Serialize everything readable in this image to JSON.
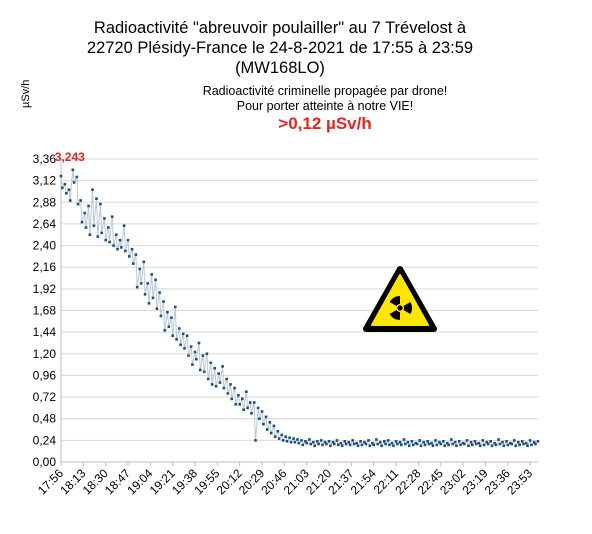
{
  "header": {
    "title_line1": "Radioactivité \"abreuvoir poulailler\" au 7 Trévelost à",
    "title_line2": "22720 Plésidy-France le 24-8-2021 de 17:55 à 23:59",
    "title_line3": "(MW168LO)",
    "subtitle_line1": "Radioactivité criminelle propagée par drone!",
    "subtitle_line2": "Pour porter atteinte à notre VIE!",
    "threshold": ">0,12 µSv/h",
    "hazard_icon": "radiation-warning-icon"
  },
  "colors": {
    "line": "#b7c9d9",
    "marker": "#1f4e79",
    "annotation": "#e8241c",
    "grid": "#d9d9d9",
    "hazard_yellow": "#ffe600"
  },
  "chart_data": {
    "type": "line",
    "ylabel": "µSv/h",
    "ylim": [
      0,
      3.36
    ],
    "yticks": [
      "0,00",
      "0,24",
      "0,48",
      "0,72",
      "0,96",
      "1,20",
      "1,44",
      "1,68",
      "1,92",
      "2,16",
      "2,40",
      "2,64",
      "2,88",
      "3,12",
      "3,36"
    ],
    "xticks": [
      "17:56",
      "18:13",
      "18:30",
      "18:47",
      "19:04",
      "19:21",
      "19:38",
      "19:55",
      "20:12",
      "20:29",
      "20:46",
      "21:03",
      "21:20",
      "21:37",
      "21:54",
      "22:11",
      "22:28",
      "22:45",
      "23:02",
      "23:19",
      "23:36",
      "23:53"
    ],
    "x_range": [
      "17:56",
      "23:59"
    ],
    "grid": "horizontal",
    "max_annotation": "3,243",
    "series": [
      {
        "points": [
          [
            "17:56",
            3.17
          ],
          [
            "17:57",
            3.04
          ],
          [
            "17:59",
            3.08
          ],
          [
            "18:00",
            2.98
          ],
          [
            "18:02",
            3.02
          ],
          [
            "18:03",
            2.9
          ],
          [
            "18:05",
            3.24
          ],
          [
            "18:06",
            3.1
          ],
          [
            "18:08",
            3.16
          ],
          [
            "18:09",
            2.86
          ],
          [
            "18:11",
            2.9
          ],
          [
            "18:12",
            2.66
          ],
          [
            "18:14",
            2.76
          ],
          [
            "18:15",
            2.6
          ],
          [
            "18:17",
            2.84
          ],
          [
            "18:18",
            2.52
          ],
          [
            "18:20",
            3.02
          ],
          [
            "18:21",
            2.62
          ],
          [
            "18:23",
            2.92
          ],
          [
            "18:24",
            2.5
          ],
          [
            "18:26",
            2.86
          ],
          [
            "18:27",
            2.54
          ],
          [
            "18:29",
            2.7
          ],
          [
            "18:30",
            2.46
          ],
          [
            "18:32",
            2.6
          ],
          [
            "18:33",
            2.44
          ],
          [
            "18:35",
            2.72
          ],
          [
            "18:36",
            2.4
          ],
          [
            "18:38",
            2.52
          ],
          [
            "18:39",
            2.36
          ],
          [
            "18:41",
            2.46
          ],
          [
            "18:42",
            2.38
          ],
          [
            "18:44",
            2.62
          ],
          [
            "18:45",
            2.34
          ],
          [
            "18:47",
            2.46
          ],
          [
            "18:48",
            2.28
          ],
          [
            "18:50",
            2.36
          ],
          [
            "18:51",
            2.2
          ],
          [
            "18:53",
            2.3
          ],
          [
            "18:54",
            1.94
          ],
          [
            "18:56",
            2.14
          ],
          [
            "18:57",
            1.98
          ],
          [
            "18:59",
            2.22
          ],
          [
            "19:00",
            1.86
          ],
          [
            "19:02",
            1.98
          ],
          [
            "19:03",
            1.76
          ],
          [
            "19:05",
            2.08
          ],
          [
            "19:06",
            1.82
          ],
          [
            "19:08",
            2.02
          ],
          [
            "19:09",
            1.7
          ],
          [
            "19:11",
            1.88
          ],
          [
            "19:12",
            1.62
          ],
          [
            "19:14",
            1.78
          ],
          [
            "19:15",
            1.46
          ],
          [
            "19:17",
            1.66
          ],
          [
            "19:18",
            1.5
          ],
          [
            "19:20",
            1.6
          ],
          [
            "19:21",
            1.4
          ],
          [
            "19:23",
            1.72
          ],
          [
            "19:24",
            1.36
          ],
          [
            "19:26",
            1.48
          ],
          [
            "19:27",
            1.3
          ],
          [
            "19:29",
            1.42
          ],
          [
            "19:30",
            1.26
          ],
          [
            "19:32",
            1.4
          ],
          [
            "19:33",
            1.18
          ],
          [
            "19:35",
            1.28
          ],
          [
            "19:36",
            1.08
          ],
          [
            "19:38",
            1.22
          ],
          [
            "19:39",
            1.14
          ],
          [
            "19:41",
            1.32
          ],
          [
            "19:42",
            1.02
          ],
          [
            "19:44",
            1.18
          ],
          [
            "19:45",
            1.0
          ],
          [
            "19:47",
            1.2
          ],
          [
            "19:48",
            0.92
          ],
          [
            "19:50",
            1.1
          ],
          [
            "19:51",
            0.86
          ],
          [
            "19:53",
            1.04
          ],
          [
            "19:54",
            0.84
          ],
          [
            "19:56",
            0.98
          ],
          [
            "19:57",
            0.88
          ],
          [
            "19:59",
            1.06
          ],
          [
            "20:00",
            0.82
          ],
          [
            "20:02",
            0.92
          ],
          [
            "20:03",
            0.76
          ],
          [
            "20:05",
            0.86
          ],
          [
            "20:06",
            0.7
          ],
          [
            "20:08",
            0.82
          ],
          [
            "20:09",
            0.64
          ],
          [
            "20:11",
            0.74
          ],
          [
            "20:12",
            0.64
          ],
          [
            "20:14",
            0.7
          ],
          [
            "20:15",
            0.58
          ],
          [
            "20:17",
            0.78
          ],
          [
            "20:18",
            0.6
          ],
          [
            "20:20",
            0.66
          ],
          [
            "20:21",
            0.54
          ],
          [
            "20:23",
            0.66
          ],
          [
            "20:24",
            0.24
          ],
          [
            "20:26",
            0.6
          ],
          [
            "20:27",
            0.48
          ],
          [
            "20:29",
            0.56
          ],
          [
            "20:30",
            0.42
          ],
          [
            "20:32",
            0.5
          ],
          [
            "20:33",
            0.36
          ],
          [
            "20:35",
            0.44
          ],
          [
            "20:36",
            0.32
          ],
          [
            "20:38",
            0.4
          ],
          [
            "20:39",
            0.28
          ],
          [
            "20:41",
            0.34
          ],
          [
            "20:42",
            0.26
          ],
          [
            "20:44",
            0.3
          ],
          [
            "20:45",
            0.24
          ],
          [
            "20:47",
            0.28
          ],
          [
            "20:48",
            0.23
          ],
          [
            "20:50",
            0.27
          ],
          [
            "20:51",
            0.22
          ],
          [
            "20:53",
            0.26
          ],
          [
            "20:54",
            0.22
          ],
          [
            "20:56",
            0.25
          ],
          [
            "20:57",
            0.21
          ],
          [
            "20:59",
            0.24
          ],
          [
            "21:00",
            0.19
          ],
          [
            "21:02",
            0.23
          ],
          [
            "21:03",
            0.21
          ],
          [
            "21:05",
            0.25
          ],
          [
            "21:06",
            0.2
          ],
          [
            "21:08",
            0.22
          ],
          [
            "21:09",
            0.18
          ],
          [
            "21:11",
            0.23
          ],
          [
            "21:12",
            0.2
          ],
          [
            "21:14",
            0.24
          ],
          [
            "21:15",
            0.19
          ],
          [
            "21:17",
            0.22
          ],
          [
            "21:18",
            0.2
          ],
          [
            "21:20",
            0.23
          ],
          [
            "21:21",
            0.18
          ],
          [
            "21:23",
            0.22
          ],
          [
            "21:24",
            0.2
          ],
          [
            "21:26",
            0.24
          ],
          [
            "21:27",
            0.19
          ],
          [
            "21:29",
            0.21
          ],
          [
            "21:30",
            0.18
          ],
          [
            "21:32",
            0.23
          ],
          [
            "21:33",
            0.2
          ],
          [
            "21:35",
            0.22
          ],
          [
            "21:36",
            0.19
          ],
          [
            "21:38",
            0.24
          ],
          [
            "21:39",
            0.2
          ],
          [
            "21:41",
            0.21
          ],
          [
            "21:42",
            0.18
          ],
          [
            "21:44",
            0.23
          ],
          [
            "21:45",
            0.19
          ],
          [
            "21:47",
            0.22
          ],
          [
            "21:48",
            0.2
          ],
          [
            "21:50",
            0.24
          ],
          [
            "21:51",
            0.18
          ],
          [
            "21:53",
            0.21
          ],
          [
            "21:54",
            0.19
          ],
          [
            "21:56",
            0.25
          ],
          [
            "21:57",
            0.2
          ],
          [
            "21:59",
            0.22
          ],
          [
            "22:00",
            0.18
          ],
          [
            "22:02",
            0.23
          ],
          [
            "22:03",
            0.2
          ],
          [
            "22:05",
            0.24
          ],
          [
            "22:06",
            0.19
          ],
          [
            "22:08",
            0.21
          ],
          [
            "22:09",
            0.18
          ],
          [
            "22:11",
            0.23
          ],
          [
            "22:12",
            0.2
          ],
          [
            "22:14",
            0.22
          ],
          [
            "22:15",
            0.19
          ],
          [
            "22:17",
            0.25
          ],
          [
            "22:18",
            0.2
          ],
          [
            "22:20",
            0.22
          ],
          [
            "22:21",
            0.18
          ],
          [
            "22:23",
            0.23
          ],
          [
            "22:24",
            0.19
          ],
          [
            "22:26",
            0.21
          ],
          [
            "22:27",
            0.2
          ],
          [
            "22:29",
            0.24
          ],
          [
            "22:30",
            0.18
          ],
          [
            "22:32",
            0.22
          ],
          [
            "22:33",
            0.19
          ],
          [
            "22:35",
            0.23
          ],
          [
            "22:36",
            0.2
          ],
          [
            "22:38",
            0.21
          ],
          [
            "22:39",
            0.18
          ],
          [
            "22:41",
            0.24
          ],
          [
            "22:42",
            0.19
          ],
          [
            "22:44",
            0.22
          ],
          [
            "22:45",
            0.2
          ],
          [
            "22:47",
            0.23
          ],
          [
            "22:48",
            0.18
          ],
          [
            "22:50",
            0.21
          ],
          [
            "22:51",
            0.19
          ],
          [
            "22:53",
            0.25
          ],
          [
            "22:54",
            0.2
          ],
          [
            "22:56",
            0.22
          ],
          [
            "22:57",
            0.18
          ],
          [
            "22:59",
            0.23
          ],
          [
            "23:00",
            0.19
          ],
          [
            "23:02",
            0.21
          ],
          [
            "23:03",
            0.2
          ],
          [
            "23:05",
            0.24
          ],
          [
            "23:06",
            0.18
          ],
          [
            "23:08",
            0.22
          ],
          [
            "23:09",
            0.19
          ],
          [
            "23:11",
            0.23
          ],
          [
            "23:12",
            0.2
          ],
          [
            "23:14",
            0.21
          ],
          [
            "23:15",
            0.18
          ],
          [
            "23:17",
            0.24
          ],
          [
            "23:18",
            0.19
          ],
          [
            "23:20",
            0.22
          ],
          [
            "23:21",
            0.2
          ],
          [
            "23:23",
            0.23
          ],
          [
            "23:24",
            0.18
          ],
          [
            "23:26",
            0.21
          ],
          [
            "23:27",
            0.19
          ],
          [
            "23:29",
            0.25
          ],
          [
            "23:30",
            0.2
          ],
          [
            "23:32",
            0.22
          ],
          [
            "23:33",
            0.18
          ],
          [
            "23:35",
            0.23
          ],
          [
            "23:36",
            0.19
          ],
          [
            "23:38",
            0.21
          ],
          [
            "23:39",
            0.2
          ],
          [
            "23:41",
            0.24
          ],
          [
            "23:42",
            0.18
          ],
          [
            "23:44",
            0.22
          ],
          [
            "23:45",
            0.19
          ],
          [
            "23:47",
            0.23
          ],
          [
            "23:48",
            0.2
          ],
          [
            "23:50",
            0.21
          ],
          [
            "23:51",
            0.18
          ],
          [
            "23:53",
            0.24
          ],
          [
            "23:54",
            0.19
          ],
          [
            "23:56",
            0.22
          ],
          [
            "23:57",
            0.2
          ],
          [
            "23:59",
            0.23
          ]
        ]
      }
    ]
  }
}
